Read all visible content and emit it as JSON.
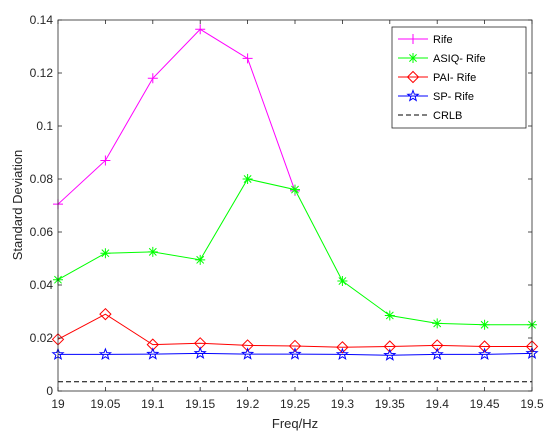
{
  "chart_data": {
    "type": "line",
    "title": "",
    "xlabel": "Freq/Hz",
    "ylabel": "Standard Deviation",
    "xlim": [
      19,
      19.5
    ],
    "ylim": [
      0,
      0.14
    ],
    "x_ticks": [
      "19",
      "19.05",
      "19.1",
      "19.15",
      "19.2",
      "19.25",
      "19.3",
      "19.35",
      "19.4",
      "19.45",
      "19.5"
    ],
    "y_ticks": [
      "0",
      "0.02",
      "0.04",
      "0.06",
      "0.08",
      "0.1",
      "0.12",
      "0.14"
    ],
    "grid": false,
    "legend_position": "top-right",
    "x": [
      19,
      19.05,
      19.1,
      19.15,
      19.2,
      19.25,
      19.3,
      19.35,
      19.4,
      19.45,
      19.5
    ],
    "series": [
      {
        "name": "Rife",
        "color": "#ff00ff",
        "marker": "plus",
        "x": [
          19,
          19.05,
          19.1,
          19.15,
          19.2,
          19.25
        ],
        "values": [
          0.0705,
          0.087,
          0.118,
          0.1365,
          0.1255,
          0.0755
        ]
      },
      {
        "name": "ASIQ- Rife",
        "color": "#00ff00",
        "marker": "asterisk",
        "values": [
          0.042,
          0.052,
          0.0525,
          0.0495,
          0.08,
          0.076,
          0.0415,
          0.0285,
          0.0255,
          0.025,
          0.025
        ]
      },
      {
        "name": "PAI- Rife",
        "color": "#ff0000",
        "marker": "diamond",
        "values": [
          0.0195,
          0.029,
          0.0175,
          0.018,
          0.0172,
          0.017,
          0.0165,
          0.0168,
          0.0172,
          0.0168,
          0.0168
        ]
      },
      {
        "name": "SP- Rife",
        "color": "#0000ff",
        "marker": "star",
        "values": [
          0.0138,
          0.0138,
          0.0139,
          0.0142,
          0.0139,
          0.0139,
          0.0138,
          0.0135,
          0.0138,
          0.0138,
          0.0142
        ]
      },
      {
        "name": "CRLB",
        "color": "#000000",
        "marker": "none",
        "dash": "dashed",
        "values": [
          0.0035,
          0.0035,
          0.0035,
          0.0035,
          0.0035,
          0.0035,
          0.0035,
          0.0035,
          0.0035,
          0.0035,
          0.0035
        ]
      }
    ]
  }
}
